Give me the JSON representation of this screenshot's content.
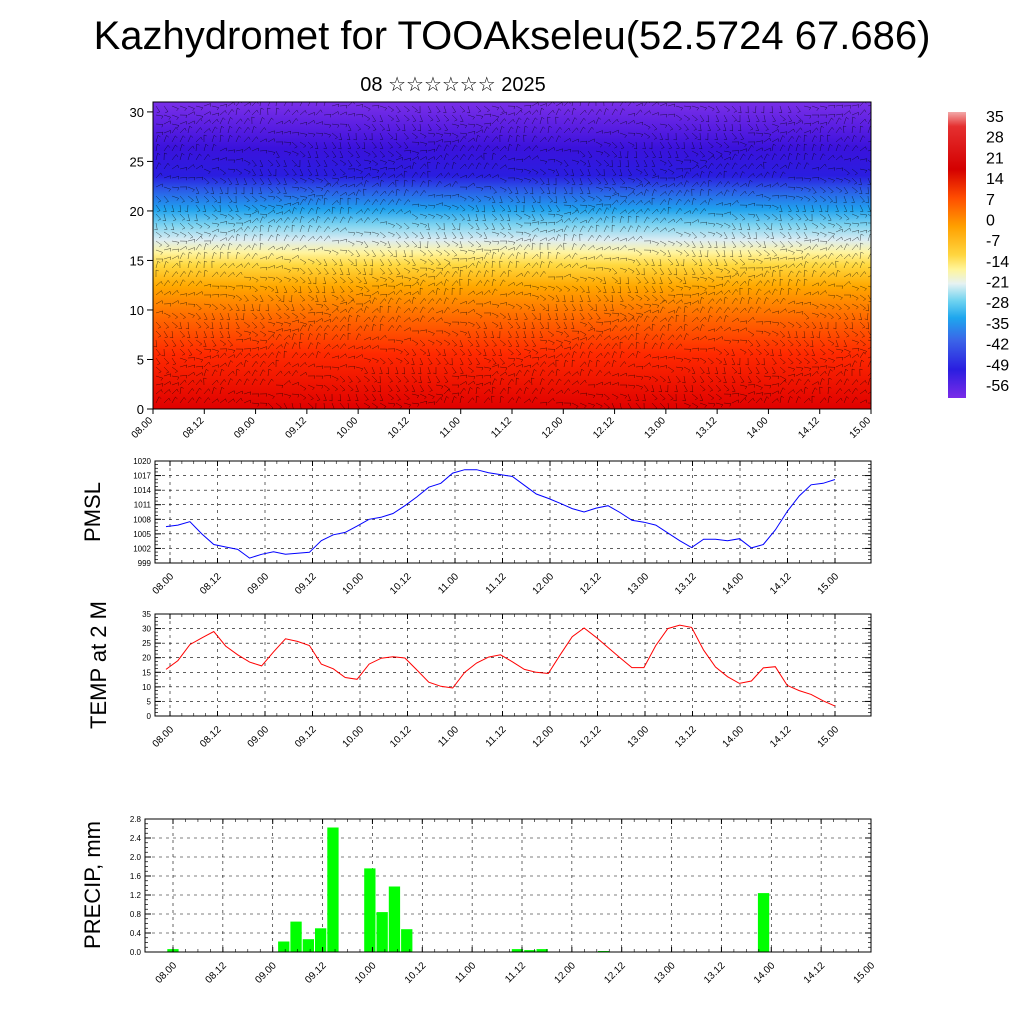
{
  "title": "Kazhydromet for TOOAkseleu(52.5724 67.686)",
  "subtitle": "08 ☆☆☆☆☆☆ 2025",
  "colorbar_labels": [
    "35",
    "28",
    "21",
    "14",
    "7",
    "0",
    "-7",
    "-14",
    "-21",
    "-28",
    "-35",
    "-42",
    "-49",
    "-56"
  ],
  "chart_data": [
    {
      "type": "heatmap",
      "title": "",
      "xlabel": "",
      "ylabel": "",
      "x_ticks": [
        "08.00",
        "08.12",
        "09.00",
        "09.12",
        "10.00",
        "10.12",
        "11.00",
        "11.12",
        "12.00",
        "12.12",
        "13.00",
        "13.12",
        "14.00",
        "14.12",
        "15.00"
      ],
      "y_ticks": [
        "0",
        "5",
        "10",
        "15",
        "20",
        "25",
        "30"
      ],
      "ylim": [
        0,
        31
      ],
      "colorbar_range": [
        -56,
        35
      ],
      "description_levels": "temperature with height, warm near ground, cold above 20",
      "profile": [
        [
          0,
          30
        ],
        [
          5,
          22
        ],
        [
          10,
          12
        ],
        [
          13,
          2
        ],
        [
          15,
          -8
        ],
        [
          17,
          -18
        ],
        [
          20,
          -30
        ],
        [
          22,
          -45
        ],
        [
          25,
          -58
        ],
        [
          28,
          -56
        ],
        [
          31,
          -52
        ]
      ]
    },
    {
      "type": "line",
      "ylabel": "PMSL",
      "x_ticks": [
        "08.00",
        "08.12",
        "09.00",
        "09.12",
        "10.00",
        "10.12",
        "11.00",
        "11.12",
        "12.00",
        "12.12",
        "13.00",
        "13.12",
        "14.00",
        "14.12",
        "15.00"
      ],
      "y_ticks": [
        "999",
        "1002",
        "1005",
        "1008",
        "1011",
        "1014",
        "1017",
        "1020"
      ],
      "ylim": [
        999,
        1020
      ],
      "color": "#0000ff",
      "values": [
        1006.5,
        1006.8,
        1007.5,
        1005,
        1002.8,
        1002.3,
        1001.8,
        1000,
        1000.8,
        1001.3,
        1000.8,
        1001,
        1001.2,
        1003.6,
        1004.8,
        1005.3,
        1006.6,
        1008,
        1008.4,
        1009.2,
        1010.8,
        1012.6,
        1014.6,
        1015.4,
        1017.5,
        1018.2,
        1018.2,
        1017.6,
        1017.2,
        1016.8,
        1015,
        1013.2,
        1012.3,
        1011.3,
        1010.2,
        1009.5,
        1010.3,
        1010.8,
        1009.4,
        1007.8,
        1007.4,
        1006.8,
        1005.2,
        1003.6,
        1002.2,
        1003.9,
        1003.9,
        1003.6,
        1004,
        1002.1,
        1002.8,
        1005.8,
        1009.6,
        1012.8,
        1015.1,
        1015.4,
        1016.2
      ]
    },
    {
      "type": "line",
      "ylabel": "TEMP at 2 M",
      "x_ticks": [
        "08.00",
        "08.12",
        "09.00",
        "09.12",
        "10.00",
        "10.12",
        "11.00",
        "11.12",
        "12.00",
        "12.12",
        "13.00",
        "13.12",
        "14.00",
        "14.12",
        "15.00"
      ],
      "y_ticks": [
        "0",
        "5",
        "10",
        "15",
        "20",
        "25",
        "30",
        "35"
      ],
      "ylim": [
        0,
        35
      ],
      "color": "#ff0000",
      "values": [
        16,
        19,
        24.5,
        26.8,
        29,
        24,
        21,
        18.5,
        17.2,
        22,
        26.5,
        25.6,
        24.2,
        17.8,
        16.2,
        13.2,
        12.6,
        17.8,
        19.8,
        20.3,
        19.9,
        15.8,
        11.6,
        10.2,
        9.6,
        15,
        18.2,
        20.2,
        21,
        18.6,
        16,
        15,
        14.6,
        21,
        27.2,
        30.2,
        27,
        23.5,
        20,
        16.6,
        16.6,
        24.2,
        30,
        31.2,
        30.4,
        22.6,
        16.8,
        13.5,
        11.2,
        12,
        16.5,
        16.9,
        10.5,
        8.7,
        7.4,
        5.2,
        3.4
      ]
    },
    {
      "type": "bar",
      "ylabel": "PRECIP, mm",
      "x_ticks": [
        "08.00",
        "08.12",
        "09.00",
        "09.12",
        "10.00",
        "10.12",
        "11.00",
        "11.12",
        "12.00",
        "12.12",
        "13.00",
        "13.12",
        "14.00",
        "14.12",
        "15.00"
      ],
      "y_ticks": [
        "0.0",
        "0.4",
        "0.8",
        "1.2",
        "1.6",
        "2.0",
        "2.4",
        "2.8"
      ],
      "ylim": [
        0,
        2.8
      ],
      "color": "#00ff00",
      "values": [
        0,
        0.06,
        0,
        0,
        0,
        0,
        0,
        0,
        0,
        0,
        0.22,
        0.64,
        0.27,
        0.5,
        2.62,
        0,
        0,
        1.76,
        0.84,
        1.38,
        0.48,
        0,
        0,
        0,
        0,
        0,
        0,
        0,
        0,
        0.06,
        0.04,
        0.06,
        0,
        0,
        0,
        0,
        0.02,
        0,
        0,
        0,
        0,
        0,
        0,
        0,
        0,
        0,
        0,
        0,
        0,
        1.24,
        0,
        0,
        0,
        0,
        0,
        0,
        0
      ]
    }
  ]
}
